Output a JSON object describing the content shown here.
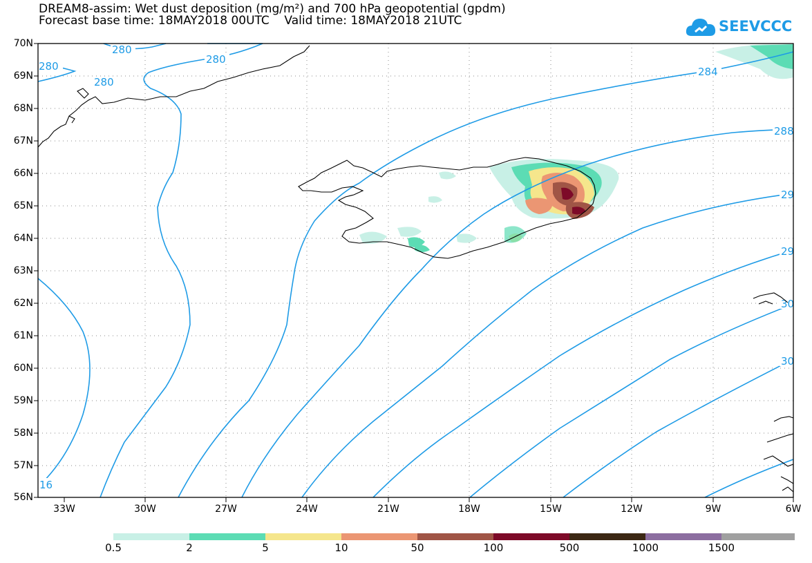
{
  "header": {
    "title_line1": "DREAM8-assim: Wet dust deposition (mg/m²) and 700 hPa geopotential (gpdm)",
    "title_line2": "Forecast base time: 18MAY2018 00UTC    Valid time: 18MAY2018 21UTC",
    "logo_text": "SEEVCCC",
    "logo_icon": "cloud-icon"
  },
  "map": {
    "lat_labels": [
      "70N",
      "69N",
      "68N",
      "67N",
      "66N",
      "65N",
      "64N",
      "63N",
      "62N",
      "61N",
      "60N",
      "59N",
      "58N",
      "57N",
      "56N"
    ],
    "lon_labels": [
      "33W",
      "30W",
      "27W",
      "24W",
      "21W",
      "18W",
      "15W",
      "12W",
      "9W",
      "6W"
    ],
    "contour_labels": [
      "280",
      "280",
      "280",
      "280",
      "284",
      "288",
      "29",
      "29",
      "30",
      "30",
      "16"
    ],
    "colors": {
      "contour": "#1e9be6",
      "coast": "#000000"
    }
  },
  "legend": {
    "labels": [
      "0.5",
      "2",
      "5",
      "10",
      "50",
      "100",
      "500",
      "1000",
      "1500"
    ],
    "colors": [
      "#c8f0e6",
      "#5cdcb4",
      "#f5e68c",
      "#eb9673",
      "#a05546",
      "#7d0a28",
      "#3c2814",
      "#8c6ea0",
      "#a0a0a0"
    ]
  }
}
